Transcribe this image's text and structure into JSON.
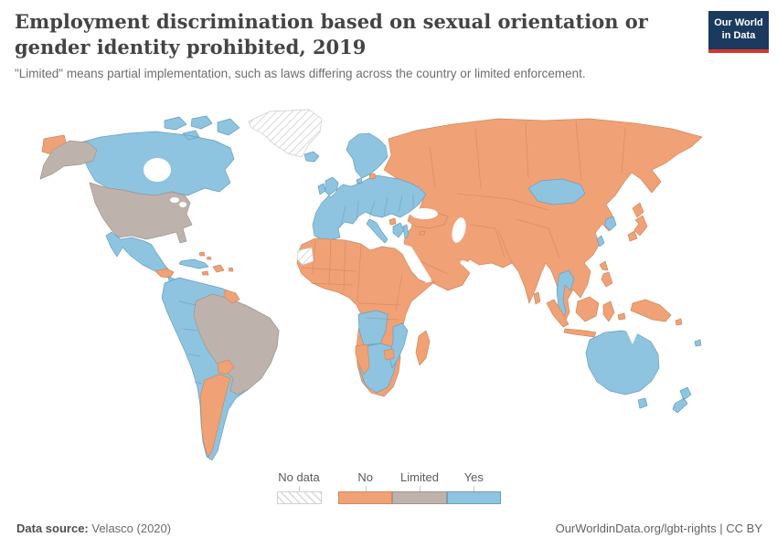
{
  "header": {
    "title": "Employment discrimination based on sexual orientation or gender identity prohibited, 2019",
    "subtitle": "\"Limited\" means partial implementation, such as laws differing across the country or limited enforcement."
  },
  "logo": {
    "line1": "Our World",
    "line2": "in Data"
  },
  "legend": {
    "no_data_label": "No data",
    "categories": [
      {
        "label": "No",
        "color": "#f1a176",
        "border": "#cd8a5e"
      },
      {
        "label": "Limited",
        "color": "#beb3ac",
        "border": "#a0958e"
      },
      {
        "label": "Yes",
        "color": "#8ec4df",
        "border": "#689fc0"
      }
    ]
  },
  "footer": {
    "source_label": "Data source:",
    "source_value": "Velasco (2020)",
    "link_text": "OurWorldinData.org/lgbt-rights",
    "separator": " | ",
    "license": "CC BY"
  },
  "map": {
    "no_data_hatch_color": "#d8d8d8",
    "no_data_border": "#cccccc",
    "regions": [
      {
        "id": "asia-mainland",
        "name": "Russia, Central Asia, Middle East, China, India & mainland Southeast Asia",
        "status": "No"
      },
      {
        "id": "turkey",
        "name": "Turkey & Cyprus",
        "status": "No"
      },
      {
        "id": "europe",
        "name": "Europe (most countries)",
        "status": "Yes"
      },
      {
        "id": "kaliningrad",
        "name": "Kaliningrad (Russia)",
        "status": "No"
      },
      {
        "id": "north-macedonia",
        "name": "North Macedonia",
        "status": "No"
      },
      {
        "id": "israel",
        "name": "Israel",
        "status": "Yes"
      },
      {
        "id": "mongolia",
        "name": "Mongolia",
        "status": "Yes"
      },
      {
        "id": "south-korea",
        "name": "South Korea",
        "status": "Yes"
      },
      {
        "id": "japan",
        "name": "Japan",
        "status": "No"
      },
      {
        "id": "taiwan",
        "name": "Taiwan",
        "status": "Yes"
      },
      {
        "id": "thailand",
        "name": "Thailand",
        "status": "Yes"
      },
      {
        "id": "philippines",
        "name": "Philippines",
        "status": "No"
      },
      {
        "id": "sri-lanka",
        "name": "Sri Lanka",
        "status": "No"
      },
      {
        "id": "indonesia-malaysia",
        "name": "Indonesia & Malaysia",
        "status": "No"
      },
      {
        "id": "new-guinea",
        "name": "Papua New Guinea",
        "status": "No"
      },
      {
        "id": "africa-main",
        "name": "Africa (most countries)",
        "status": "No"
      },
      {
        "id": "western-sahara",
        "name": "Western Sahara",
        "status": "No data"
      },
      {
        "id": "angola",
        "name": "Angola",
        "status": "Yes"
      },
      {
        "id": "south-africa-botswana",
        "name": "South Africa & Botswana",
        "status": "Yes"
      },
      {
        "id": "mozambique",
        "name": "Mozambique",
        "status": "Yes"
      },
      {
        "id": "namibia",
        "name": "Namibia",
        "status": "No"
      },
      {
        "id": "zimbabwe",
        "name": "Zimbabwe",
        "status": "No"
      },
      {
        "id": "madagascar",
        "name": "Madagascar",
        "status": "No"
      },
      {
        "id": "greenland",
        "name": "Greenland",
        "status": "No data"
      },
      {
        "id": "canada",
        "name": "Canada",
        "status": "Yes"
      },
      {
        "id": "united-states",
        "name": "United States",
        "status": "Limited"
      },
      {
        "id": "mexico",
        "name": "Mexico",
        "status": "Yes"
      },
      {
        "id": "guatemala-honduras",
        "name": "Guatemala & Honduras",
        "status": "No"
      },
      {
        "id": "central-america-south",
        "name": "Nicaragua, Costa Rica & Panama",
        "status": "Yes"
      },
      {
        "id": "cuba",
        "name": "Cuba",
        "status": "Yes"
      },
      {
        "id": "hispaniola",
        "name": "Hispaniola",
        "status": "No"
      },
      {
        "id": "caribbean-islands",
        "name": "Caribbean islands",
        "status": "No"
      },
      {
        "id": "andean-states",
        "name": "Colombia, Venezuela, Ecuador, Peru, Bolivia, Chile & Uruguay",
        "status": "Yes"
      },
      {
        "id": "brazil",
        "name": "Brazil",
        "status": "Limited"
      },
      {
        "id": "guyana",
        "name": "Guyana",
        "status": "No"
      },
      {
        "id": "paraguay",
        "name": "Paraguay",
        "status": "No"
      },
      {
        "id": "argentina",
        "name": "Argentina",
        "status": "No"
      },
      {
        "id": "australia",
        "name": "Australia",
        "status": "Yes"
      },
      {
        "id": "new-zealand",
        "name": "New Zealand",
        "status": "Yes"
      },
      {
        "id": "fiji",
        "name": "Fiji",
        "status": "Yes"
      }
    ]
  }
}
